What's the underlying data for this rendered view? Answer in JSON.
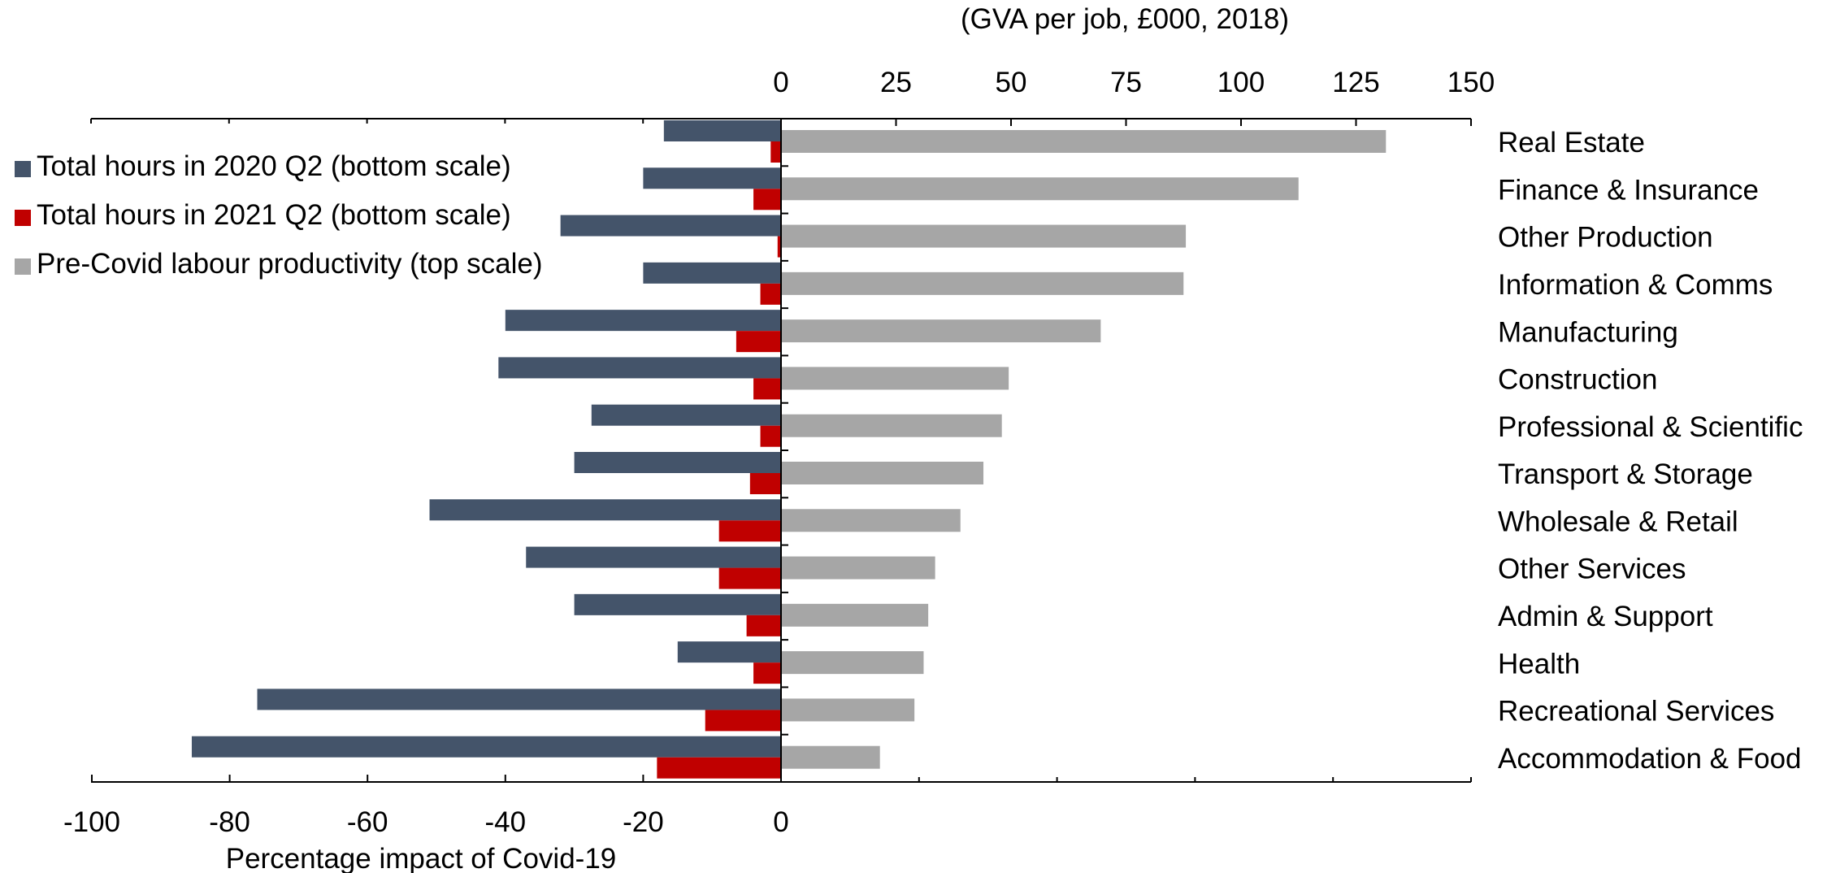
{
  "chart_data": {
    "type": "bar",
    "orientation": "horizontal",
    "title": "",
    "top_axis": {
      "label": "(GVA per job, £000, 2018)",
      "range": [
        0,
        150
      ],
      "ticks": [
        "0",
        "25",
        "50",
        "75",
        "100",
        "125",
        "150"
      ]
    },
    "bottom_axis": {
      "label": "Percentage impact of Covid-19",
      "range": [
        -100,
        0
      ],
      "ticks": [
        "-100",
        "-80",
        "-60",
        "-40",
        "-20",
        "0"
      ]
    },
    "categories": [
      "Real Estate",
      "Finance & Insurance",
      "Other Production",
      "Information & Comms",
      "Manufacturing",
      "Construction",
      "Professional & Scientific",
      "Transport & Storage",
      "Wholesale & Retail",
      "Other Services",
      "Admin & Support",
      "Health",
      "Recreational Services",
      "Accommodation & Food"
    ],
    "series": [
      {
        "name": "Total hours in 2020 Q2 (bottom scale)",
        "scale": "bottom",
        "color": "#44546a",
        "values": [
          -17,
          -20,
          -32,
          -20,
          -40,
          -41,
          -27.5,
          -30,
          -51,
          -37,
          -30,
          -15,
          -76,
          -85.5
        ]
      },
      {
        "name": "Total hours in 2021 Q2 (bottom scale)",
        "scale": "bottom",
        "color": "#c00000",
        "values": [
          -1.5,
          -4,
          -0.5,
          -3,
          -6.5,
          -4,
          -3,
          -4.5,
          -9,
          -9,
          -5,
          -4,
          -11,
          -18
        ]
      },
      {
        "name": "Pre-Covid labour productivity (top scale)",
        "scale": "top",
        "color": "#a6a6a6",
        "values": [
          131.5,
          112.5,
          88,
          87.5,
          69.5,
          49.5,
          48,
          44,
          39,
          33.5,
          32,
          31,
          29,
          21.5
        ]
      }
    ],
    "legend": "top-left",
    "grid": false
  }
}
